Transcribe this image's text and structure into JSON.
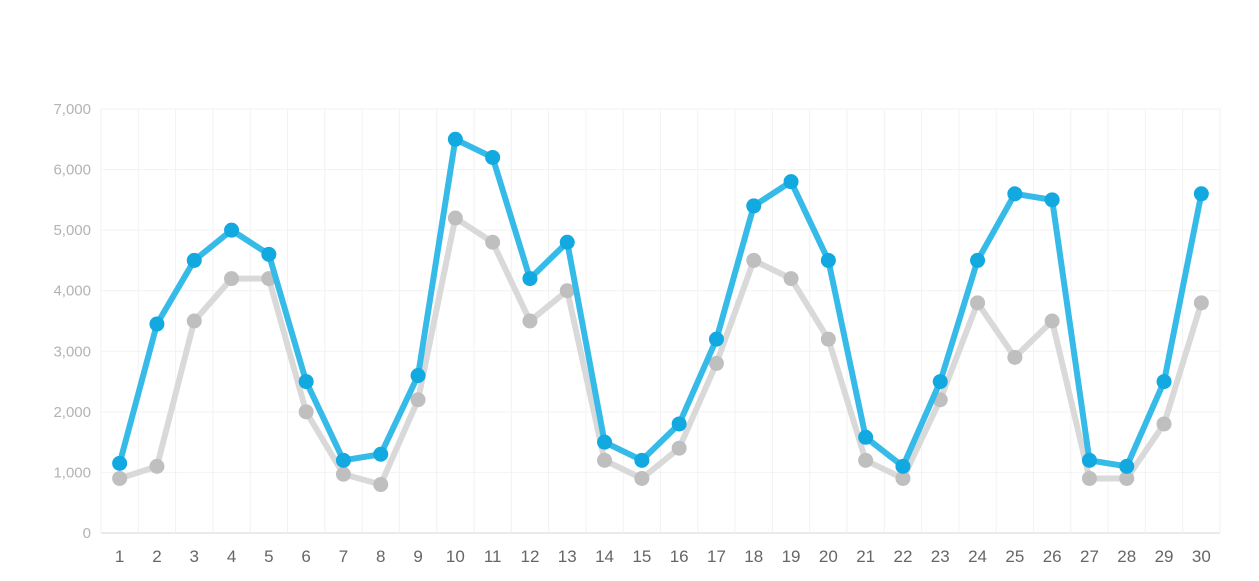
{
  "chart_data": {
    "type": "line",
    "title": "",
    "xlabel": "",
    "ylabel": "",
    "x": [
      "1",
      "2",
      "3",
      "4",
      "5",
      "6",
      "7",
      "8",
      "9",
      "10",
      "11",
      "12",
      "13",
      "14",
      "15",
      "16",
      "17",
      "18",
      "19",
      "20",
      "21",
      "22",
      "23",
      "24",
      "25",
      "26",
      "27",
      "28",
      "29",
      "30"
    ],
    "ylim": [
      0,
      7000
    ],
    "yticks": [
      0,
      1000,
      2000,
      3000,
      4000,
      5000,
      6000,
      7000
    ],
    "ytick_labels": [
      "0",
      "1,000",
      "2,000",
      "3,000",
      "4,000",
      "5,000",
      "6,000",
      "7,000"
    ],
    "grid": true,
    "legend": "none",
    "series": [
      {
        "color": "#d9d9d9",
        "marker_color": "#bfbfbf",
        "values": [
          900,
          1100,
          3500,
          4200,
          4200,
          2000,
          970,
          800,
          2200,
          5200,
          4800,
          3500,
          4000,
          1200,
          900,
          1400,
          2800,
          4500,
          4200,
          3200,
          1200,
          900,
          2200,
          3800,
          2900,
          3500,
          900,
          900,
          1800,
          3800
        ]
      },
      {
        "color": "#36bbe9",
        "marker_color": "#12a8e0",
        "values": [
          1150,
          3450,
          4500,
          5000,
          4600,
          2500,
          1200,
          1300,
          2600,
          6500,
          6200,
          4200,
          4800,
          1500,
          1200,
          1800,
          3200,
          5400,
          5800,
          4500,
          1580,
          1100,
          2500,
          4500,
          5600,
          5500,
          1200,
          1100,
          2500,
          5600
        ]
      }
    ]
  }
}
